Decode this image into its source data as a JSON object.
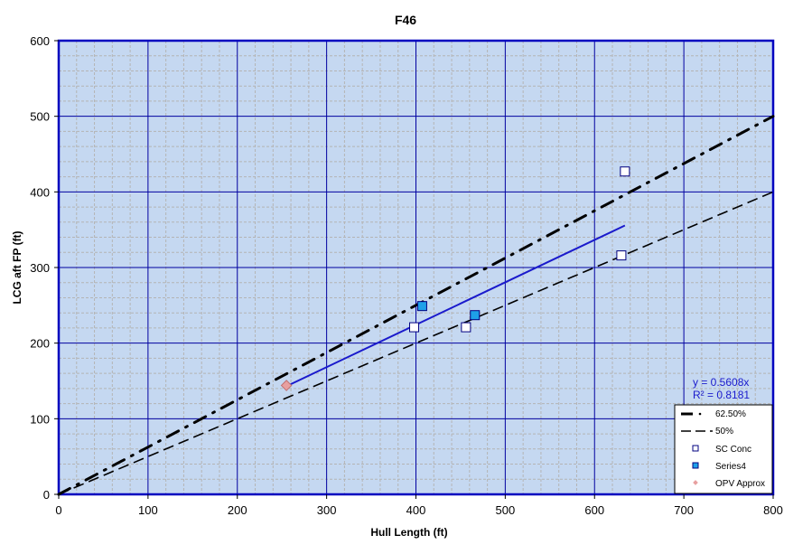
{
  "chart_data": {
    "type": "scatter",
    "title": "F46",
    "xlabel": "Hull Length (ft)",
    "ylabel": "LCG aft FP (ft)",
    "xlim": [
      0,
      800
    ],
    "ylim": [
      0,
      600
    ],
    "xticks": [
      0,
      100,
      200,
      300,
      400,
      500,
      600,
      700,
      800
    ],
    "yticks": [
      0,
      100,
      200,
      300,
      400,
      500,
      600
    ],
    "grid": true,
    "legend_position": "lower right",
    "series": [
      {
        "name": "62.50%",
        "kind": "line",
        "style": "dash-dot",
        "color": "#000000",
        "points": [
          [
            0,
            0
          ],
          [
            800,
            500
          ]
        ]
      },
      {
        "name": "50%",
        "kind": "line",
        "style": "dashed",
        "color": "#000000",
        "points": [
          [
            0,
            0
          ],
          [
            800,
            400
          ]
        ]
      },
      {
        "name": "SC Conc",
        "kind": "marker",
        "marker": "square",
        "color": "#ffffff",
        "edge": "#000080",
        "points": [
          [
            398,
            221
          ],
          [
            456,
            221
          ],
          [
            630,
            316
          ],
          [
            634,
            427
          ]
        ]
      },
      {
        "name": "Series4",
        "kind": "marker",
        "marker": "square",
        "color": "#1ea0e8",
        "edge": "#000080",
        "points": [
          [
            407,
            249
          ],
          [
            466,
            237
          ]
        ]
      },
      {
        "name": "OPV Approx",
        "kind": "marker",
        "marker": "diamond",
        "color": "#e8a0a0",
        "edge": "#c07070",
        "points": [
          [
            255,
            144
          ]
        ]
      }
    ],
    "trendline": {
      "equation": "y = 0.5608x",
      "r2": "R² = 0.8181",
      "slope": 0.5608,
      "x_range": [
        255,
        634
      ],
      "color": "#1a1acc"
    }
  },
  "labels": {
    "title": "F46",
    "xlabel": "Hull Length (ft)",
    "ylabel": "LCG aft FP (ft)",
    "equation": "y = 0.5608x",
    "r2": "R² = 0.8181",
    "legend": [
      "62.50%",
      "50%",
      "SC Conc",
      "Series4",
      "OPV Approx"
    ]
  },
  "colors": {
    "plot_bg": "#c5d8f1",
    "axis": "#0000c0",
    "major_grid": "#0000a0",
    "minor_grid": "#b4b4b4"
  }
}
